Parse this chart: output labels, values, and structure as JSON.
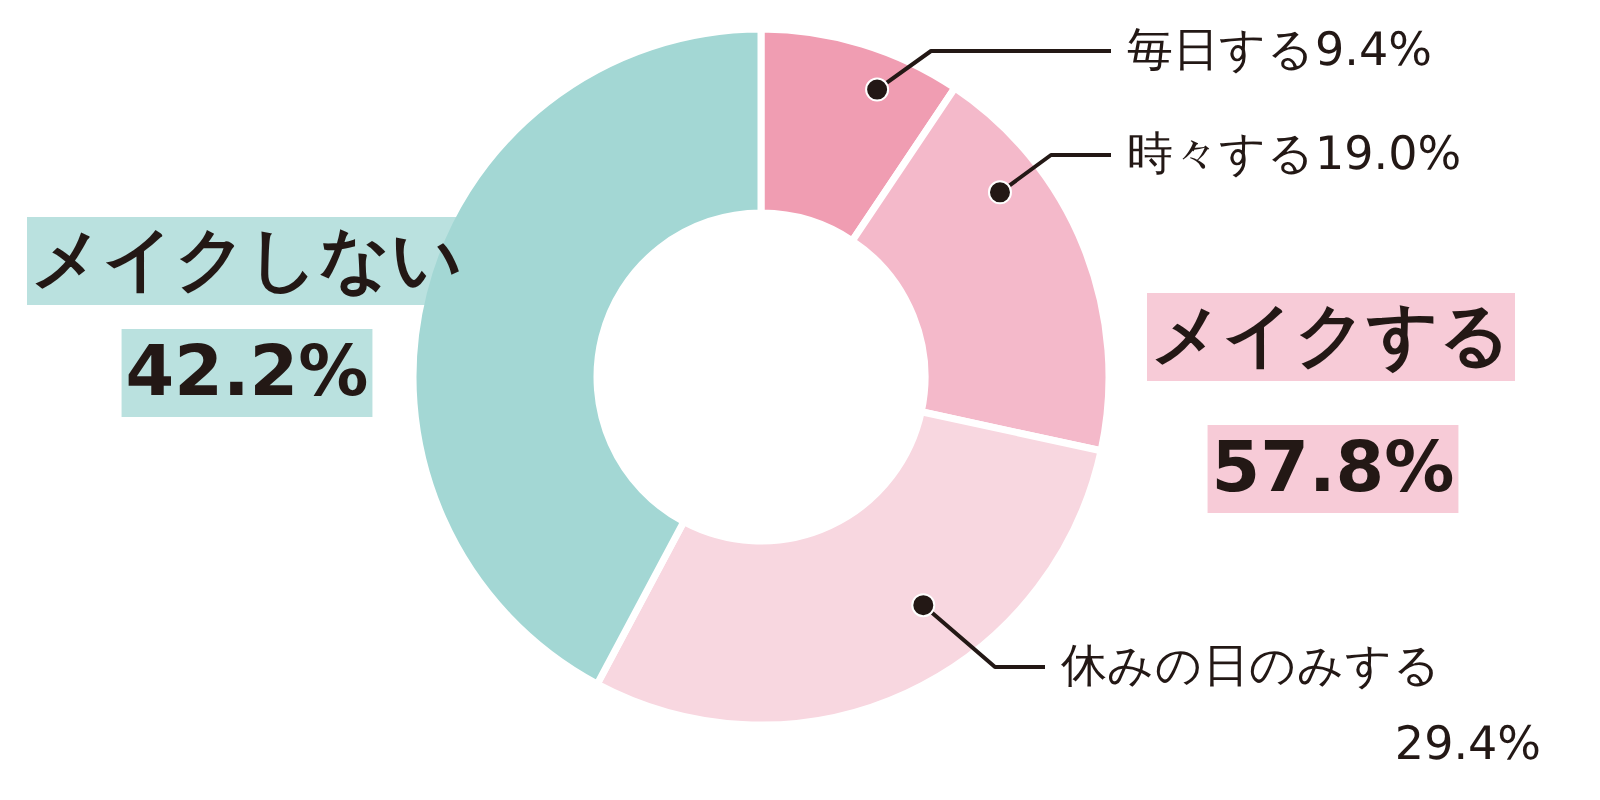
{
  "chart_data": {
    "type": "donut",
    "categories": [
      "毎日する",
      "時々する",
      "休みの日のみする",
      "メイクしない"
    ],
    "values": [
      9.4,
      19.0,
      29.4,
      42.2
    ],
    "colors": [
      "#f09db2",
      "#f4b9ca",
      "#f8d7e0",
      "#a3d7d4"
    ],
    "value_labels": [
      "9.4%",
      "19.0%",
      "29.4%",
      "42.2%"
    ],
    "annotations": [
      "メイクする",
      "57.8%"
    ]
  }
}
